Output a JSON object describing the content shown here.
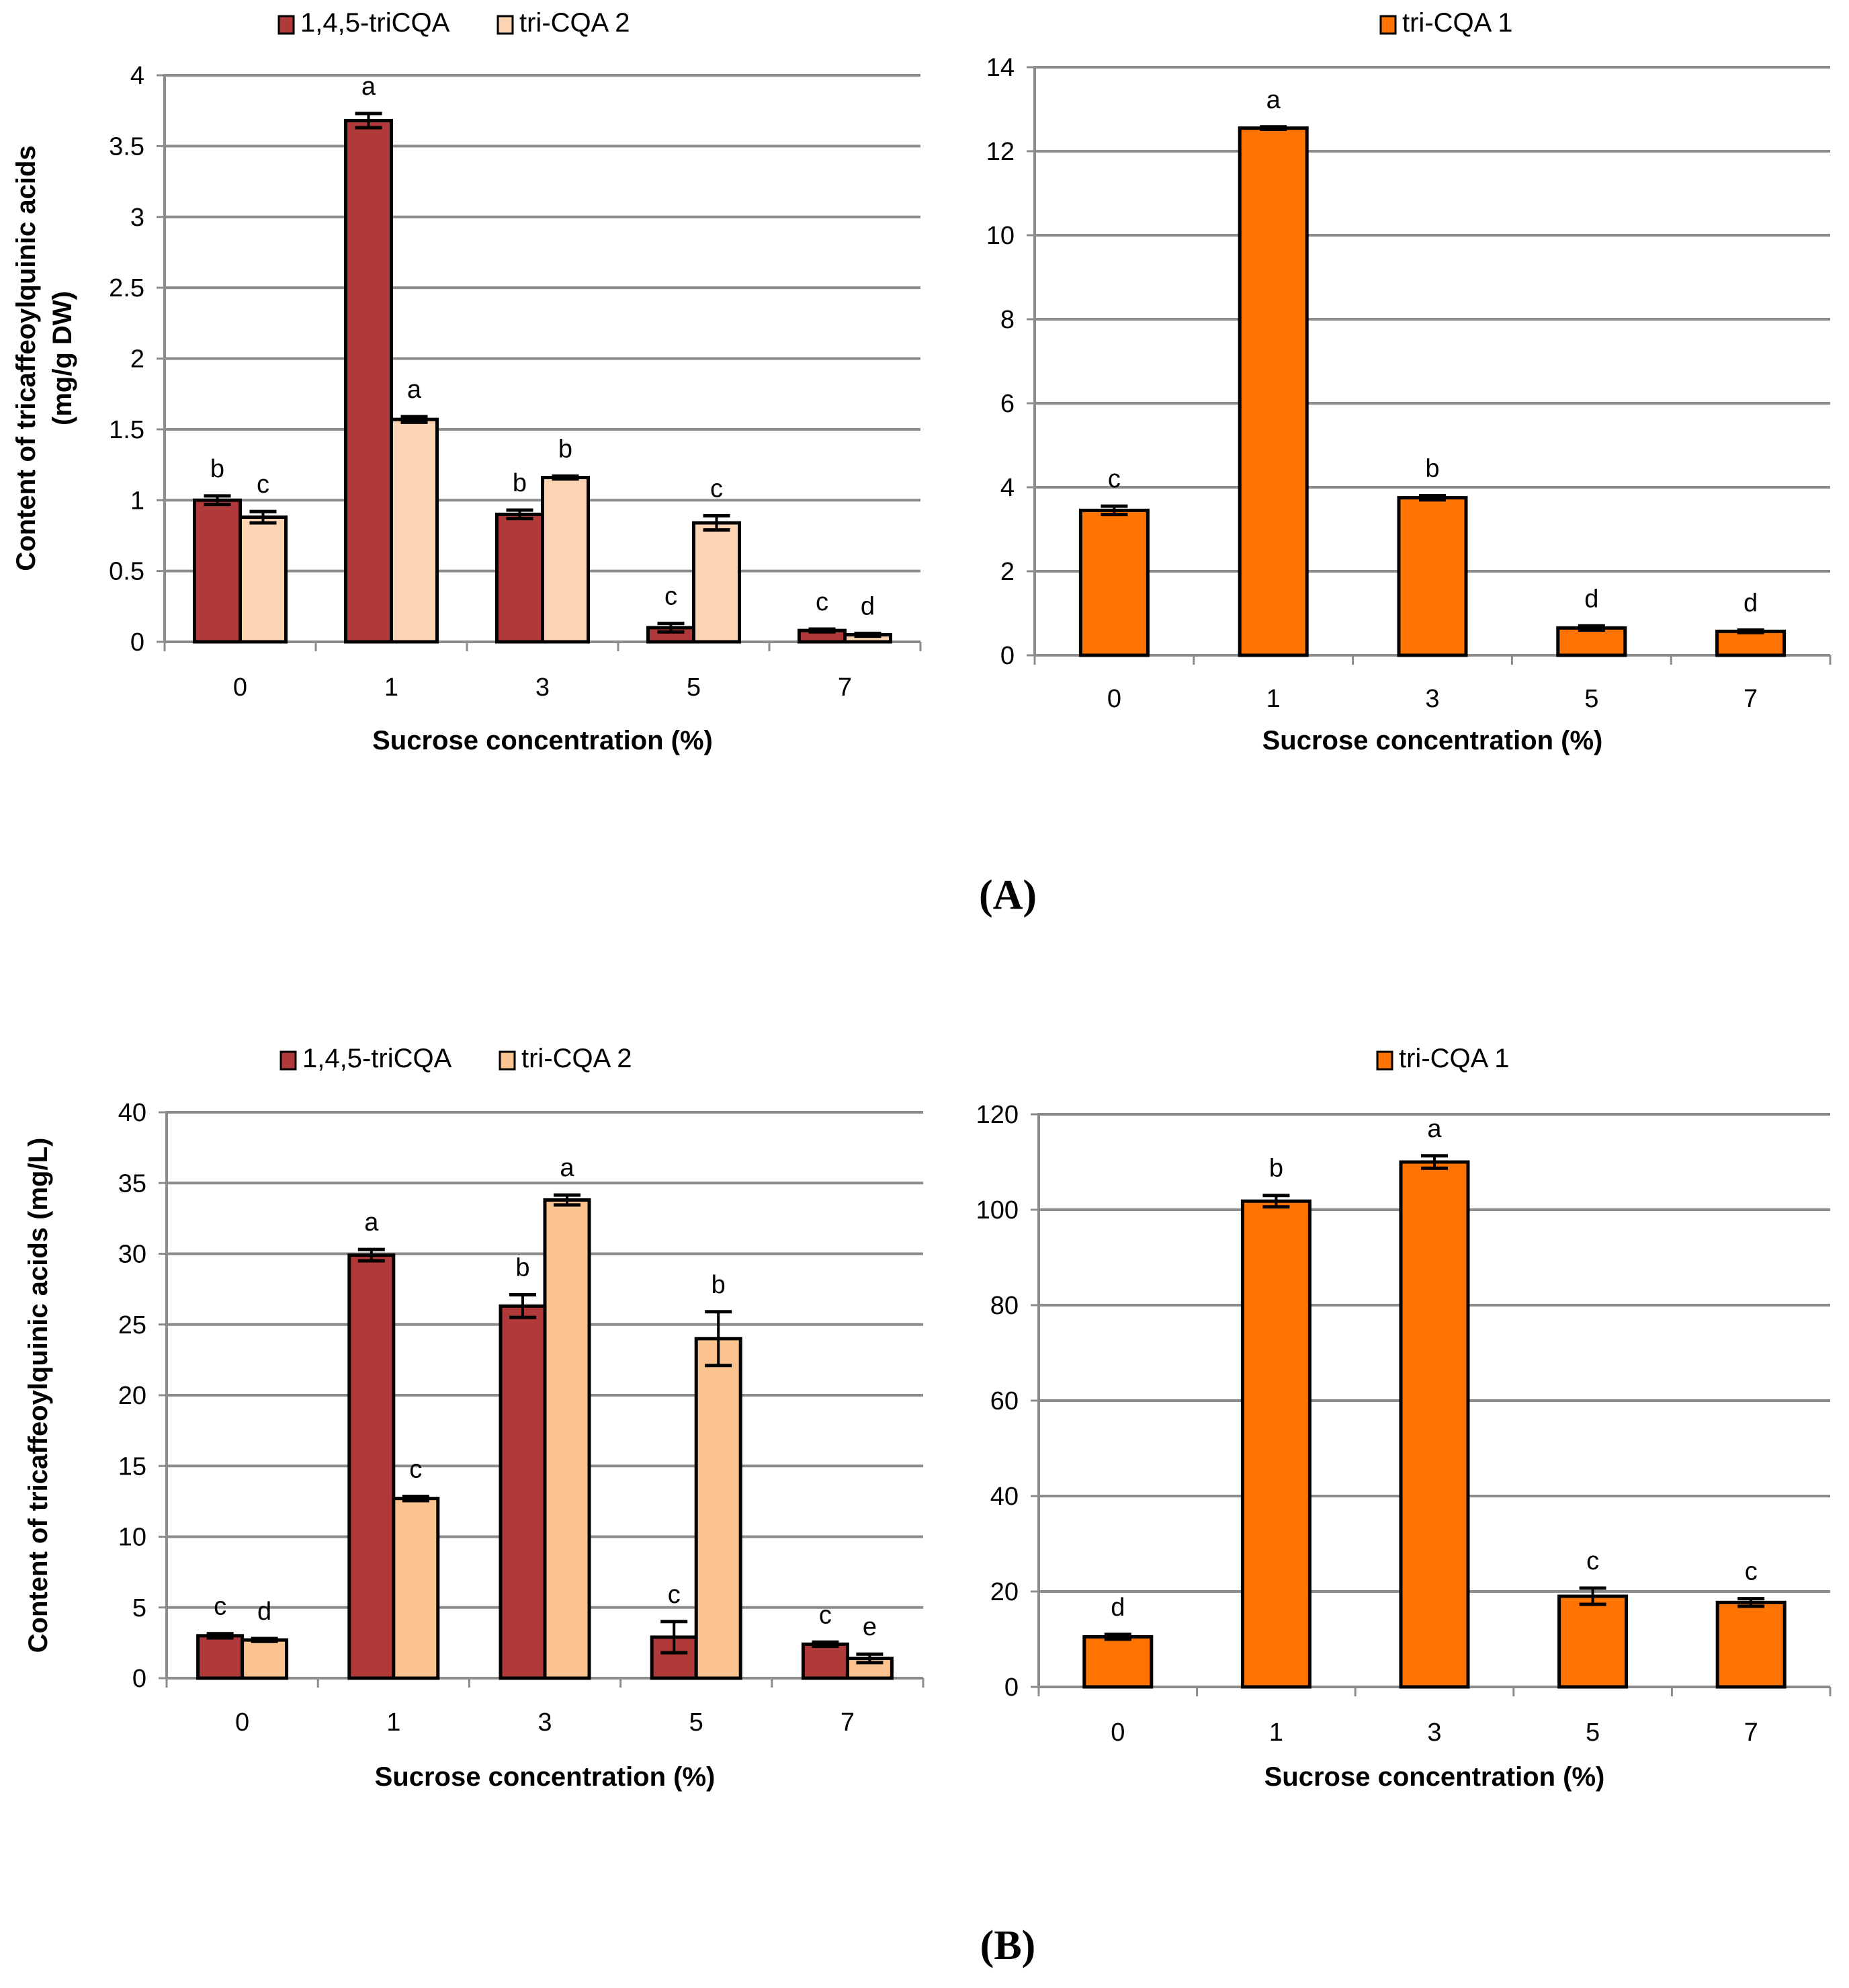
{
  "panels": [
    {
      "label": "(A)"
    },
    {
      "label": "(B)"
    }
  ],
  "colors": {
    "tricqa145": "#b03a3a",
    "tricqa2_A": "#fbd4b4",
    "tricqa2_B": "#fac38f",
    "tricqa1": "#ff7300",
    "grid": "#8c8c8c",
    "axis": "#8c8c8c"
  },
  "chart_data": [
    {
      "id": "A-left",
      "type": "bar",
      "title": "",
      "categories": [
        "0",
        "1",
        "3",
        "5",
        "7"
      ],
      "xlabel": "Sucrose concentration (%)",
      "ylabel_lines": [
        "Content of tricaffeoylquinic acids",
        "(mg/g DW)"
      ],
      "ylim": [
        0,
        4
      ],
      "yticks": [
        0,
        0.5,
        1,
        1.5,
        2,
        2.5,
        3,
        3.5,
        4
      ],
      "ytick_labels": [
        "0",
        "0.5",
        "1",
        "1.5",
        "2",
        "2.5",
        "3",
        "3.5",
        "4"
      ],
      "legend": "top",
      "series": [
        {
          "name": "1,4,5-triCQA",
          "color": "#b03a3a",
          "values": [
            1.0,
            3.68,
            0.9,
            0.1,
            0.08
          ],
          "errors": [
            0.03,
            0.05,
            0.03,
            0.03,
            0.01
          ],
          "letters": [
            "b",
            "a",
            "b",
            "c",
            "c"
          ]
        },
        {
          "name": "tri-CQA 2",
          "color": "#fbd4b4",
          "values": [
            0.88,
            1.57,
            1.16,
            0.84,
            0.05
          ],
          "errors": [
            0.04,
            0.02,
            0.01,
            0.05,
            0.01
          ],
          "letters": [
            "c",
            "a",
            "b",
            "c",
            "d"
          ]
        }
      ]
    },
    {
      "id": "A-right",
      "type": "bar",
      "title": "",
      "categories": [
        "0",
        "1",
        "3",
        "5",
        "7"
      ],
      "xlabel": "Sucrose concentration (%)",
      "ylabel_lines": [],
      "ylim": [
        0,
        14
      ],
      "yticks": [
        0,
        2,
        4,
        6,
        8,
        10,
        12,
        14
      ],
      "ytick_labels": [
        "0",
        "2",
        "4",
        "6",
        "8",
        "10",
        "12",
        "14"
      ],
      "legend": "top",
      "series": [
        {
          "name": "tri-CQA 1",
          "color": "#ff7300",
          "values": [
            3.45,
            12.55,
            3.75,
            0.65,
            0.57
          ],
          "errors": [
            0.1,
            0.03,
            0.05,
            0.05,
            0.03
          ],
          "letters": [
            "c",
            "a",
            "b",
            "d",
            "d"
          ]
        }
      ]
    },
    {
      "id": "B-left",
      "type": "bar",
      "title": "",
      "categories": [
        "0",
        "1",
        "3",
        "5",
        "7"
      ],
      "xlabel": "Sucrose concentration (%)",
      "ylabel_lines": [
        "Content of tricaffeoylquinic acids (mg/L)"
      ],
      "ylim": [
        0,
        40
      ],
      "yticks": [
        0,
        5,
        10,
        15,
        20,
        25,
        30,
        35,
        40
      ],
      "ytick_labels": [
        "0",
        "5",
        "10",
        "15",
        "20",
        "25",
        "30",
        "35",
        "40"
      ],
      "legend": "top",
      "series": [
        {
          "name": "1,4,5-triCQA",
          "color": "#b03a3a",
          "values": [
            3.0,
            29.9,
            26.3,
            2.9,
            2.4
          ],
          "errors": [
            0.15,
            0.4,
            0.8,
            1.1,
            0.15
          ],
          "letters": [
            "c",
            "a",
            "b",
            "c",
            "c"
          ]
        },
        {
          "name": "tri-CQA 2",
          "color": "#fac38f",
          "values": [
            2.7,
            12.7,
            33.8,
            24.0,
            1.4
          ],
          "errors": [
            0.1,
            0.15,
            0.35,
            1.9,
            0.3
          ],
          "letters": [
            "d",
            "c",
            "a",
            "b",
            "e"
          ]
        }
      ]
    },
    {
      "id": "B-right",
      "type": "bar",
      "title": "",
      "categories": [
        "0",
        "1",
        "3",
        "5",
        "7"
      ],
      "xlabel": "Sucrose concentration (%)",
      "ylabel_lines": [],
      "ylim": [
        0,
        120
      ],
      "yticks": [
        0,
        20,
        40,
        60,
        80,
        100,
        120
      ],
      "ytick_labels": [
        "0",
        "20",
        "40",
        "60",
        "80",
        "100",
        "120"
      ],
      "legend": "top",
      "series": [
        {
          "name": "tri-CQA 1",
          "color": "#ff7300",
          "values": [
            10.5,
            101.8,
            110.0,
            19.0,
            17.7
          ],
          "errors": [
            0.5,
            1.2,
            1.3,
            1.7,
            0.8
          ],
          "letters": [
            "d",
            "b",
            "a",
            "c",
            "c"
          ]
        }
      ]
    }
  ]
}
